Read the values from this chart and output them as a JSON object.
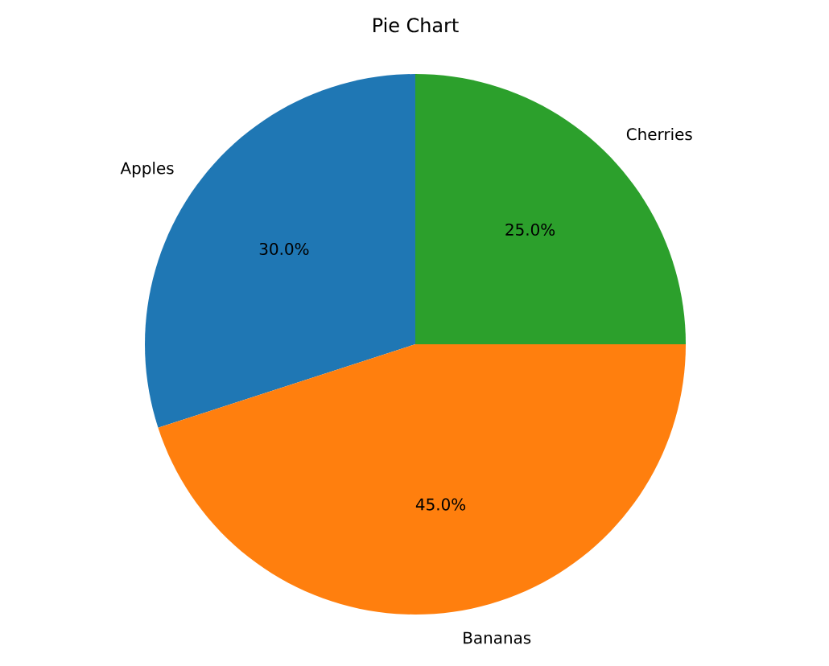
{
  "chart_data": {
    "type": "pie",
    "title": "Pie Chart",
    "categories": [
      "Apples",
      "Bananas",
      "Cherries"
    ],
    "values": [
      30,
      45,
      25
    ],
    "colors": [
      "#1f77b4",
      "#ff7f0e",
      "#2ca02c"
    ],
    "value_labels": [
      "30.0%",
      "45.0%",
      "25.0%"
    ]
  }
}
